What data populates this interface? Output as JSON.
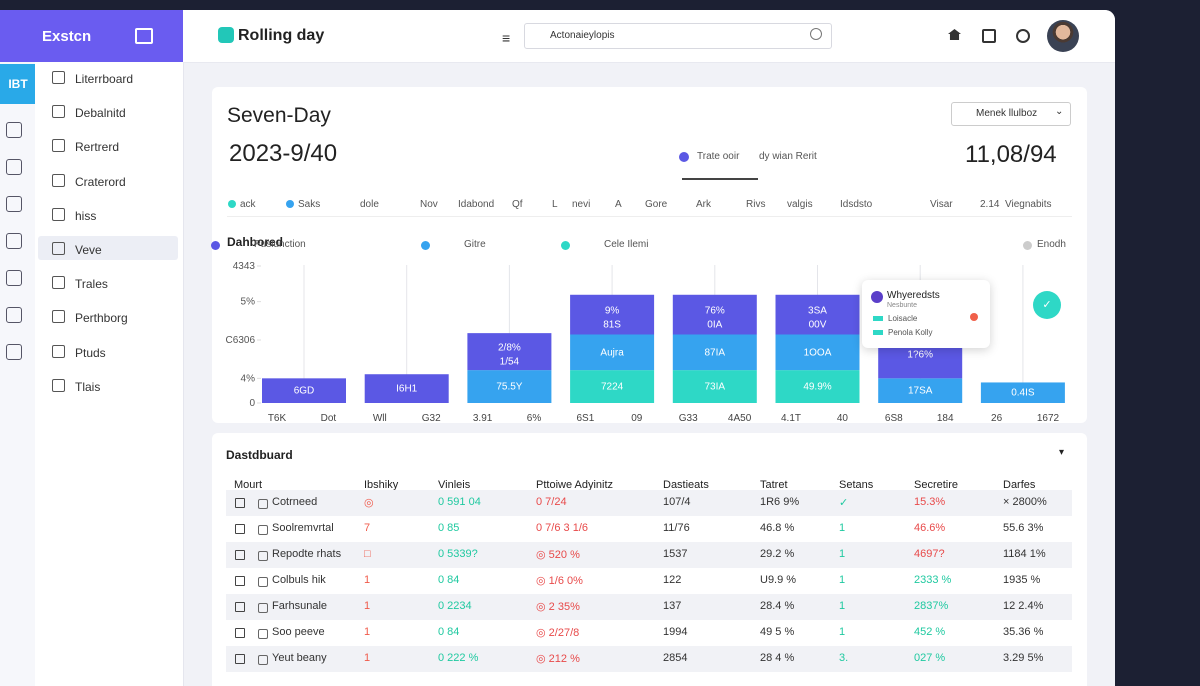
{
  "app": {
    "brand": "Exstcn",
    "badge": "IBT",
    "logo": "Rolling day",
    "search": "Actonaieylopis"
  },
  "sidebar": {
    "items": [
      "Literrboard",
      "Debalnitd",
      "Rertrerd",
      "Craterord",
      "hiss",
      "Veve",
      "Trales",
      "Perthborg",
      "Ptuds",
      "Tlais"
    ],
    "active": 5
  },
  "summary": {
    "title": "Seven-Day",
    "date": "2023-9/40",
    "legend": "Trate ooir",
    "legend_note": "dy wian Rerit",
    "total": "11,08/94",
    "dropdown": "Menek llulboz"
  },
  "filters": [
    "ack",
    "Saks",
    "dole",
    "Nov",
    "Idabond",
    "Qf",
    "L",
    "nevi",
    "A",
    "Gore",
    "Ark",
    "Rivs",
    "valgis",
    "Idsdsto",
    "Visar",
    "2.14",
    "Viegnabits"
  ],
  "chart_data": {
    "type": "bar",
    "stacked": true,
    "title": "Dahbored",
    "legend_extra": "Enodh",
    "x_labels": [
      "T6K",
      "Dot",
      "Wll",
      "G32",
      "3.91",
      "6%",
      "6S1",
      "09",
      "G33",
      "4A50",
      "4.1T",
      "40",
      "6S8",
      "184",
      "26",
      "1672"
    ],
    "ylim": [
      0,
      100
    ],
    "yticks": [
      0,
      {
        "value": 18,
        "label": "4%"
      },
      {
        "value": 46,
        "label": "C6306"
      },
      {
        "value": 74,
        "label": "5%"
      },
      {
        "value": 100,
        "label": "4343"
      }
    ],
    "series": [
      {
        "name": "Cele Ilemi",
        "color": "#2ed8c6",
        "values": [
          null,
          null,
          null,
          24,
          24,
          24,
          null,
          null
        ],
        "value_labels": [
          null,
          null,
          null,
          "7224",
          "73IA",
          "49.9%",
          null,
          null
        ]
      },
      {
        "name": "Gitre",
        "color": "#36a3ef",
        "values": [
          null,
          null,
          24,
          26,
          26,
          26,
          18,
          15
        ],
        "value_labels": [
          null,
          null,
          "75.5Y",
          "Aujra",
          "87IA",
          "1OOA",
          "17SA",
          "0.4IS"
        ]
      },
      {
        "name": "Puslunction",
        "color": "#5b58e4",
        "values": [
          18,
          21,
          27,
          29,
          29,
          29,
          35,
          null
        ],
        "value_labels": [
          "6GD",
          "I6H1",
          "2/8% 1/54",
          "9% 81S",
          "76% 0IA",
          "3SA 00V",
          "1?6%",
          null
        ]
      }
    ]
  },
  "tooltip": {
    "title": "Whyeredsts",
    "subtitle": "Nesbunte",
    "items": [
      "Loisacle",
      "Penola Kolly"
    ]
  },
  "table": {
    "title": "Dastdbuard",
    "columns": [
      "Mourt",
      "Ibshiky",
      "Vinleis",
      "Pttoiwe Adyinitz",
      "Dastieats",
      "Tatret",
      "Setans",
      "Secretire",
      "Darfes"
    ],
    "rows": [
      [
        "Cotrneed",
        "◎",
        "0 591 04",
        "0 7/24",
        "107/4",
        "1R6 9%",
        "✓",
        "15.3%",
        "× 2800%"
      ],
      [
        "Soolremvrtal",
        "7",
        "0 85",
        "0 7/6 3 1/6",
        "11/76",
        "46.8 %",
        "1",
        "46.6%",
        "55.6 3%"
      ],
      [
        "Repodte rhats",
        "□",
        "0 5339?",
        "◎ 520 %",
        "1537",
        "29.2 %",
        "1",
        "4697?",
        "1184 1%"
      ],
      [
        "Colbuls hik",
        "1",
        "0 84",
        "◎ 1/6 0%",
        "122",
        "U9.9 %",
        "1",
        "2333 %",
        "1935 %"
      ],
      [
        "Farhsunale",
        "1",
        "0 2234",
        "◎ 2 35%",
        "137",
        "28.4 %",
        "1",
        "2837%",
        "12 2.4%"
      ],
      [
        "Soo peeve",
        "1",
        "0 84",
        "◎ 2/27/8",
        "1994",
        "49 5 %",
        "1",
        "452 %",
        "35.36 %"
      ],
      [
        "Yeut beany",
        "1",
        "0 222 %",
        "◎ 212 %",
        "2854",
        "28 4 %",
        "3.",
        "027 %",
        "3.29 5%"
      ]
    ],
    "status_colors": [
      "#e84a4a",
      "#e84a4a",
      "#e84a4a",
      "#1fc9a0",
      "#1fc9a0",
      "#1fc9a0",
      "#1fc9a0"
    ]
  }
}
